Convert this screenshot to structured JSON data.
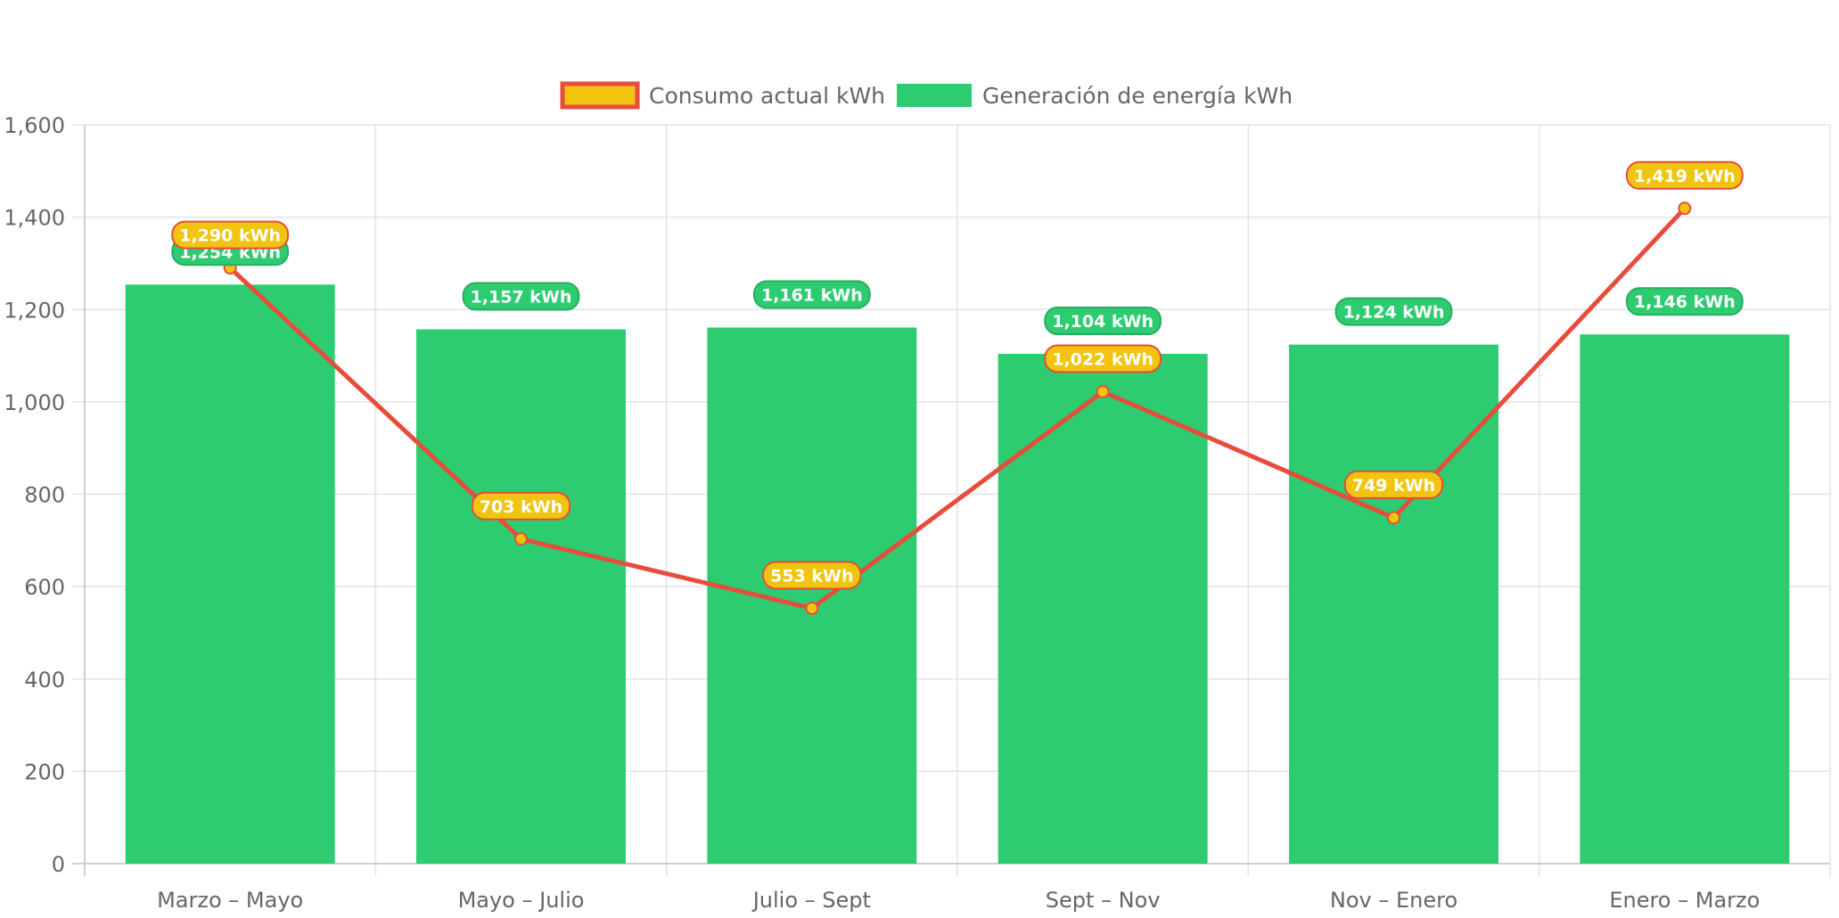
{
  "chart_data": {
    "type": "bar",
    "categories": [
      "Marzo – Mayo",
      "Mayo – Julio",
      "Julio – Sept",
      "Sept – Nov",
      "Nov – Enero",
      "Enero – Marzo"
    ],
    "series": [
      {
        "name": "Consumo actual kWh",
        "type": "line",
        "values": [
          1290,
          703,
          553,
          1022,
          749,
          1419
        ],
        "labels": [
          "1,290 kWh",
          "703 kWh",
          "553 kWh",
          "1,022 kWh",
          "749 kWh",
          "1,419 kWh"
        ],
        "color": "#e74c3c",
        "fill_color": "#f1c40f"
      },
      {
        "name": "Generación de energía kWh",
        "type": "bar",
        "values": [
          1254,
          1157,
          1161,
          1104,
          1124,
          1146
        ],
        "labels": [
          "1,254 kWh",
          "1,157 kWh",
          "1,161 kWh",
          "1,104 kWh",
          "1,124 kWh",
          "1,146 kWh"
        ],
        "color": "#2ecc71",
        "label_border_color": "#27ae60"
      }
    ],
    "y_ticks": [
      "0",
      "200",
      "400",
      "600",
      "800",
      "1,000",
      "1,200",
      "1,400",
      "1,600"
    ],
    "ylim": [
      0,
      1600
    ],
    "grid": true,
    "legend_position": "top",
    "title": "",
    "xlabel": "",
    "ylabel": ""
  }
}
